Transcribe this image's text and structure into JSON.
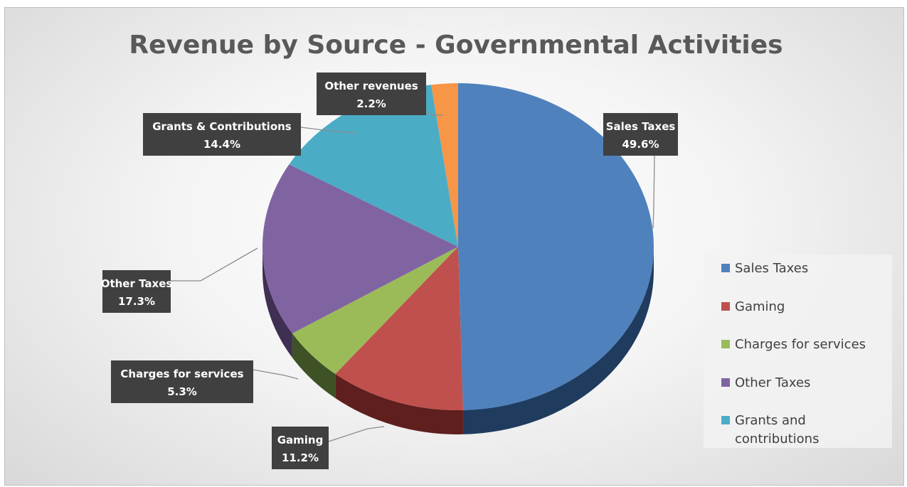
{
  "chart_data": {
    "type": "pie",
    "title": "Revenue by Source - Governmental Activities",
    "slices": [
      {
        "label": "Sales Taxes",
        "value": 49.6,
        "value_label": "49.6%",
        "color": "#4f81bd",
        "side_color": "#1f3b5e"
      },
      {
        "label": "Gaming",
        "value": 11.2,
        "value_label": "11.2%",
        "color": "#c0504d",
        "side_color": "#5e1f1e"
      },
      {
        "label": "Charges for services",
        "value": 5.3,
        "value_label": "5.3%",
        "color": "#9bbb59",
        "side_color": "#3f5226"
      },
      {
        "label": "Other Taxes",
        "value": 17.3,
        "value_label": "17.3%",
        "color": "#8064a2",
        "side_color": "#3f2f52"
      },
      {
        "label": "Grants & Contributions",
        "value": 14.4,
        "value_label": "14.4%",
        "color": "#4bacc6",
        "side_color": "#1f5563"
      },
      {
        "label": "Other revenues",
        "value": 2.2,
        "value_label": "2.2%",
        "color": "#f79646",
        "side_color": "#7a4317"
      }
    ],
    "legend": {
      "placement": "right",
      "entries": [
        {
          "label": "Sales Taxes",
          "color": "#4f81bd"
        },
        {
          "label": "Gaming",
          "color": "#c0504d"
        },
        {
          "label": "Charges for services",
          "color": "#9bbb59"
        },
        {
          "label": "Other Taxes",
          "color": "#8064a2"
        },
        {
          "label": "Grants and",
          "label2": "contributions",
          "color": "#4bacc6"
        }
      ]
    }
  }
}
